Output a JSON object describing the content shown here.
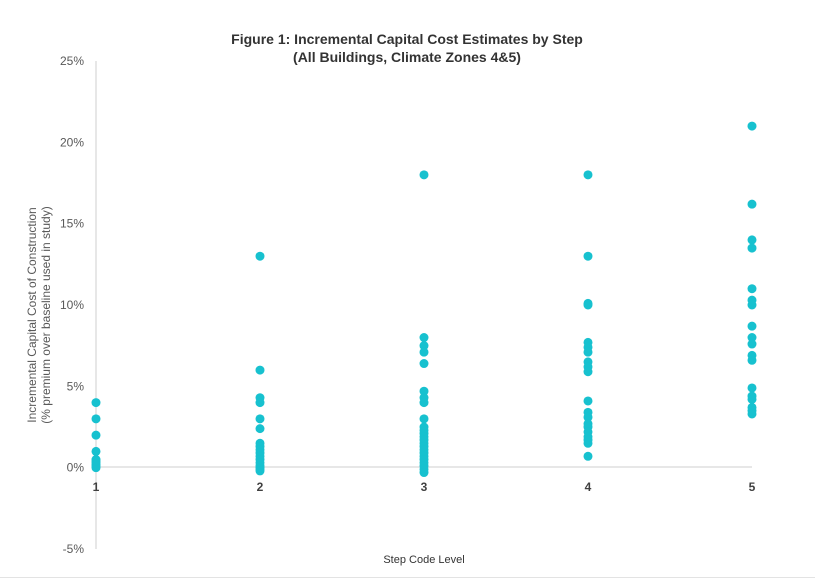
{
  "chart_data": {
    "type": "scatter",
    "title_line1": "Figure 1: Incremental Capital Cost Estimates by Step",
    "title_line2": "(All Buildings, Climate Zones 4&5)",
    "xlabel": "Step Code Level",
    "ylabel_line1": "Incremental Capital Cost of Construction",
    "ylabel_line2": "(% premium over baseline used in study)",
    "x_ticks": [
      "1",
      "2",
      "3",
      "4",
      "5"
    ],
    "y_ticks": [
      {
        "value": 25,
        "label": "25%"
      },
      {
        "value": 20,
        "label": "20%"
      },
      {
        "value": 15,
        "label": "15%"
      },
      {
        "value": 10,
        "label": "10%"
      },
      {
        "value": 5,
        "label": "5%"
      },
      {
        "value": 0,
        "label": "0%"
      },
      {
        "value": -5,
        "label": "-5%"
      }
    ],
    "ylim": [
      -5,
      25
    ],
    "xlim": [
      1,
      5
    ],
    "grid": false,
    "marker_color": "#17c1cf",
    "series": [
      {
        "x": 1,
        "values": [
          4.0,
          3.0,
          2.0,
          1.0,
          0.5,
          0.3,
          0.2,
          0.0,
          0.1,
          0.4
        ]
      },
      {
        "x": 2,
        "values": [
          13.0,
          6.0,
          4.3,
          4.0,
          3.0,
          2.4,
          1.5,
          1.3,
          1.1,
          0.9,
          0.7,
          0.5,
          0.3,
          0.1,
          0.0,
          -0.1,
          -0.2
        ]
      },
      {
        "x": 3,
        "values": [
          18.0,
          8.0,
          7.5,
          7.1,
          6.4,
          4.7,
          4.3,
          4.0,
          3.0,
          2.5,
          2.3,
          2.1,
          1.9,
          1.7,
          1.5,
          1.3,
          1.1,
          0.9,
          0.7,
          0.5,
          0.3,
          0.1,
          -0.1,
          -0.3
        ]
      },
      {
        "x": 4,
        "values": [
          18.0,
          13.0,
          10.1,
          10.0,
          7.7,
          7.4,
          7.1,
          6.5,
          6.2,
          5.9,
          4.1,
          3.4,
          3.1,
          2.7,
          2.5,
          2.2,
          1.9,
          1.7,
          1.5,
          0.7
        ]
      },
      {
        "x": 5,
        "values": [
          21.0,
          16.2,
          14.0,
          13.5,
          11.0,
          10.3,
          10.0,
          8.7,
          8.0,
          7.6,
          6.9,
          6.6,
          4.9,
          4.4,
          4.2,
          3.7,
          3.5,
          3.3
        ]
      }
    ]
  }
}
